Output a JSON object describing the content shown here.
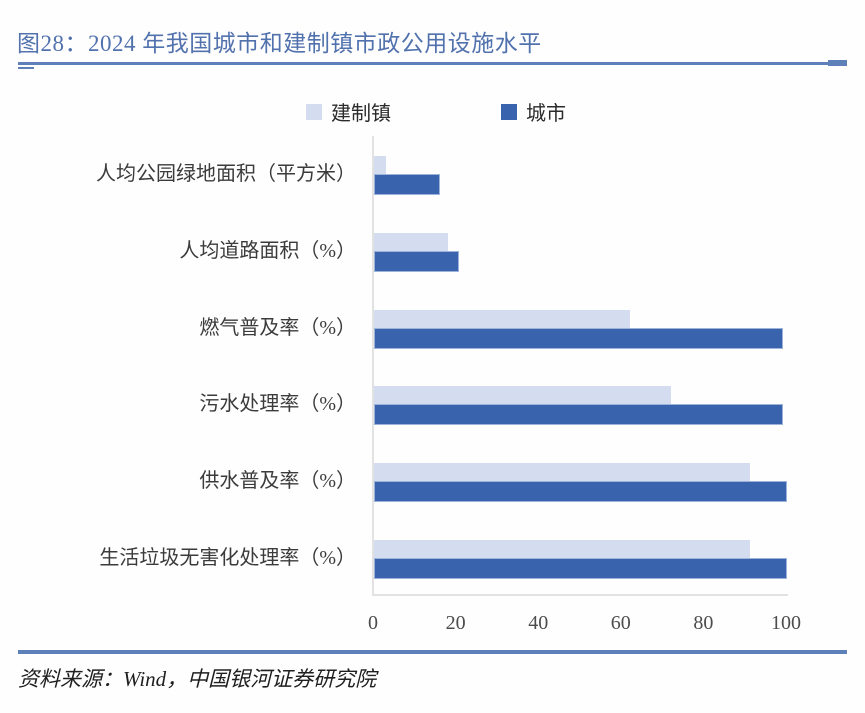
{
  "figure": {
    "title": "图28：2024 年我国城市和建制镇市政公用设施水平",
    "source": "资料来源：Wind，中国银河证券研究院"
  },
  "colors": {
    "title_text": "#5272ae",
    "rule": "#5e80b8",
    "town_bar": "#d3ddef",
    "city_bar": "#3a63ae",
    "city_bar_border": "#9db3da",
    "axis_line": "#e2e2e2",
    "tick_text": "#4c4c4c",
    "category_text": "#3b3b3b"
  },
  "chart_data": {
    "type": "bar",
    "orientation": "horizontal",
    "title": "2024 年我国城市和建制镇市政公用设施水平",
    "categories": [
      "人均公园绿地面积（平方米）",
      "人均道路面积（%）",
      "燃气普及率（%）",
      "污水处理率（%）",
      "供水普及率（%）",
      "生活垃圾无害化处理率（%）"
    ],
    "series": [
      {
        "name": "建制镇",
        "color": "#d3ddef",
        "values": [
          3,
          18,
          62,
          72,
          91,
          91
        ]
      },
      {
        "name": "城市",
        "color": "#3a63ae",
        "values": [
          16,
          20.5,
          99,
          99,
          100,
          100
        ]
      }
    ],
    "xlabel": "",
    "ylabel": "",
    "xlim": [
      0,
      100
    ],
    "xticks": [
      0,
      20,
      40,
      60,
      80,
      100
    ],
    "legend_position": "top",
    "grid": false
  }
}
